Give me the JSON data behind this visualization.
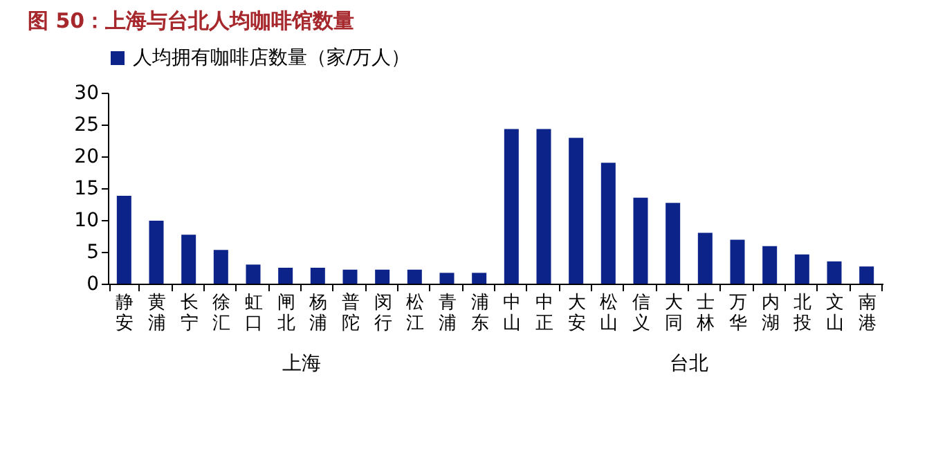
{
  "chart_data": {
    "type": "bar",
    "title": "图 50：上海与台北人均咖啡馆数量",
    "categories": [
      "静安",
      "黄浦",
      "长宁",
      "徐汇",
      "虹口",
      "闸北",
      "杨浦",
      "普陀",
      "闵行",
      "松江",
      "青浦",
      "浦东",
      "中山",
      "中正",
      "大安",
      "松山",
      "信义",
      "大同",
      "士林",
      "万华",
      "内湖",
      "北投",
      "文山",
      "南港"
    ],
    "series": [
      {
        "name": "人均拥有咖啡店数量（家/万人）",
        "color": "#0c2389",
        "values": [
          13.8,
          9.9,
          7.7,
          5.3,
          3.0,
          2.5,
          2.5,
          2.2,
          2.2,
          2.2,
          1.7,
          1.7,
          24.3,
          24.3,
          22.9,
          19.0,
          13.5,
          12.7,
          8.0,
          6.9,
          5.9,
          4.6,
          3.5,
          2.7
        ]
      }
    ],
    "ylim": [
      0,
      30
    ],
    "yticks": [
      0,
      5,
      10,
      15,
      20,
      25,
      30
    ],
    "legend": "top",
    "grid": false,
    "annotations": [
      "上海",
      "台北"
    ]
  }
}
